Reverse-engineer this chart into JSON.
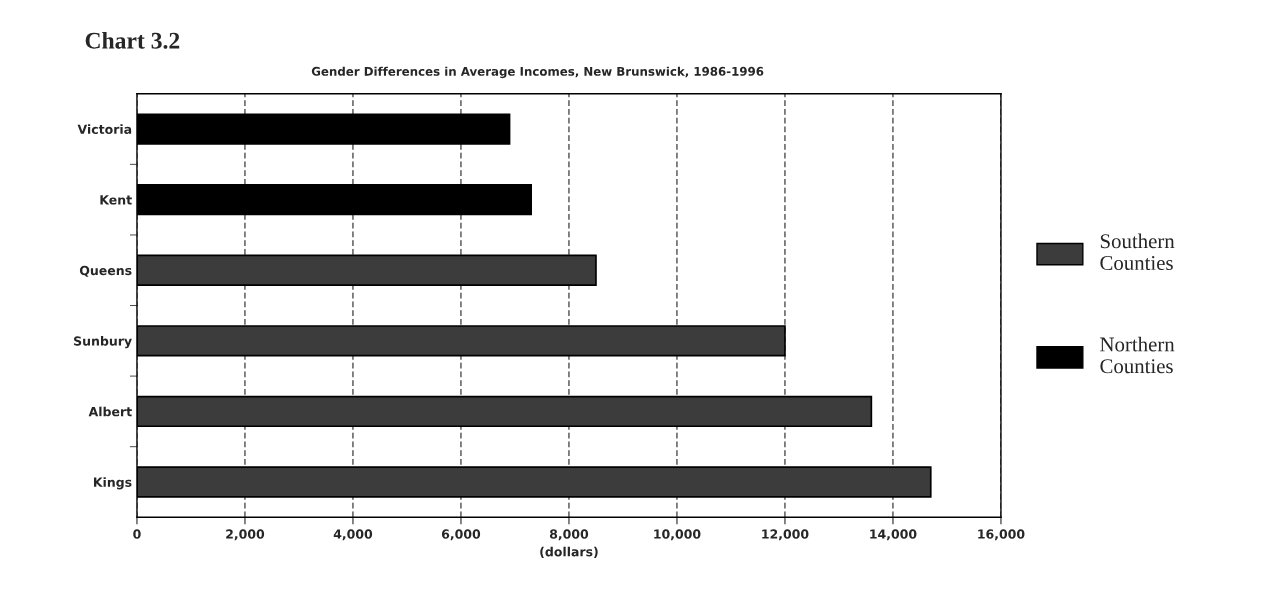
{
  "chart_data": {
    "type": "bar",
    "orientation": "horizontal",
    "title": "Chart 3.2",
    "subtitle": "Gender Differences in Average Incomes, New Brunswick, 1986-1996",
    "xlabel": "(dollars)",
    "categories": [
      "Victoria",
      "Kent",
      "Queens",
      "Sunbury",
      "Albert",
      "Kings"
    ],
    "series": [
      {
        "name": "Southern\nCounties",
        "color": "#3c3c3c",
        "values": [
          null,
          null,
          8500,
          12000,
          13600,
          14700
        ]
      },
      {
        "name": "Northern\nCounties",
        "color": "#000000",
        "values": [
          6900,
          7300,
          null,
          null,
          null,
          null
        ]
      }
    ],
    "xlim": [
      0,
      16000
    ],
    "xticks": [
      {
        "value": 0,
        "label": "0"
      },
      {
        "value": 2000,
        "label": "2,000"
      },
      {
        "value": 4000,
        "label": "4,000"
      },
      {
        "value": 6000,
        "label": "6,000"
      },
      {
        "value": 8000,
        "label": "8,000"
      },
      {
        "value": 10000,
        "label": "10,000"
      },
      {
        "value": 12000,
        "label": "12,000"
      },
      {
        "value": 14000,
        "label": "14,000"
      },
      {
        "value": 16000,
        "label": "16,000"
      }
    ],
    "grid": "x",
    "legend": "right"
  }
}
